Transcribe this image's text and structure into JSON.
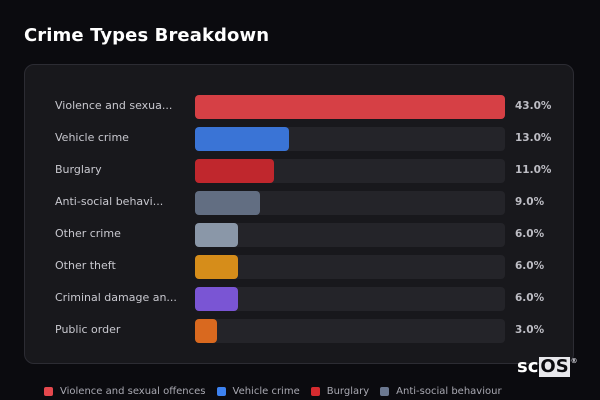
{
  "header": {
    "title": "Crime Types Breakdown"
  },
  "rows": [
    {
      "label": "Violence and sexua...",
      "value": 43.0,
      "pct": "43.0%",
      "color": "#d64045"
    },
    {
      "label": "Vehicle crime",
      "value": 13.0,
      "pct": "13.0%",
      "color": "#3a74d6"
    },
    {
      "label": "Burglary",
      "value": 11.0,
      "pct": "11.0%",
      "color": "#c0272d"
    },
    {
      "label": "Anti-social behavi...",
      "value": 9.0,
      "pct": "9.0%",
      "color": "#626e82"
    },
    {
      "label": "Other crime",
      "value": 6.0,
      "pct": "6.0%",
      "color": "#8a97a8"
    },
    {
      "label": "Other theft",
      "value": 6.0,
      "pct": "6.0%",
      "color": "#d68d1a"
    },
    {
      "label": "Criminal damage an...",
      "value": 6.0,
      "pct": "6.0%",
      "color": "#7a55d4"
    },
    {
      "label": "Public order",
      "value": 3.0,
      "pct": "3.0%",
      "color": "#d9691f"
    }
  ],
  "legend": [
    {
      "label": "Violence and sexual offences",
      "color": "#e5484d"
    },
    {
      "label": "Vehicle crime",
      "color": "#3d82f0"
    },
    {
      "label": "Burglary",
      "color": "#d62b2f"
    },
    {
      "label": "Anti-social behaviour",
      "color": "#6b7890"
    }
  ],
  "logo": {
    "text_a": "sc",
    "text_b": "OS",
    "mark": "®"
  },
  "chart_data": {
    "type": "bar",
    "orientation": "horizontal",
    "title": "Crime Types Breakdown",
    "categories": [
      "Violence and sexual offences",
      "Vehicle crime",
      "Burglary",
      "Anti-social behaviour",
      "Other crime",
      "Other theft",
      "Criminal damage and arson",
      "Public order"
    ],
    "display_labels": [
      "Violence and sexua...",
      "Vehicle crime",
      "Burglary",
      "Anti-social behavi...",
      "Other crime",
      "Other theft",
      "Criminal damage an...",
      "Public order"
    ],
    "values": [
      43.0,
      13.0,
      11.0,
      9.0,
      6.0,
      6.0,
      6.0,
      3.0
    ],
    "unit": "%",
    "colors": [
      "#d64045",
      "#3a74d6",
      "#c0272d",
      "#626e82",
      "#8a97a8",
      "#d68d1a",
      "#7a55d4",
      "#d9691f"
    ],
    "xlabel": "",
    "ylabel": "",
    "xlim": [
      0,
      43
    ],
    "grid": false,
    "legend_position": "bottom",
    "legend_entries": [
      "Violence and sexual offences",
      "Vehicle crime",
      "Burglary",
      "Anti-social behaviour"
    ]
  }
}
